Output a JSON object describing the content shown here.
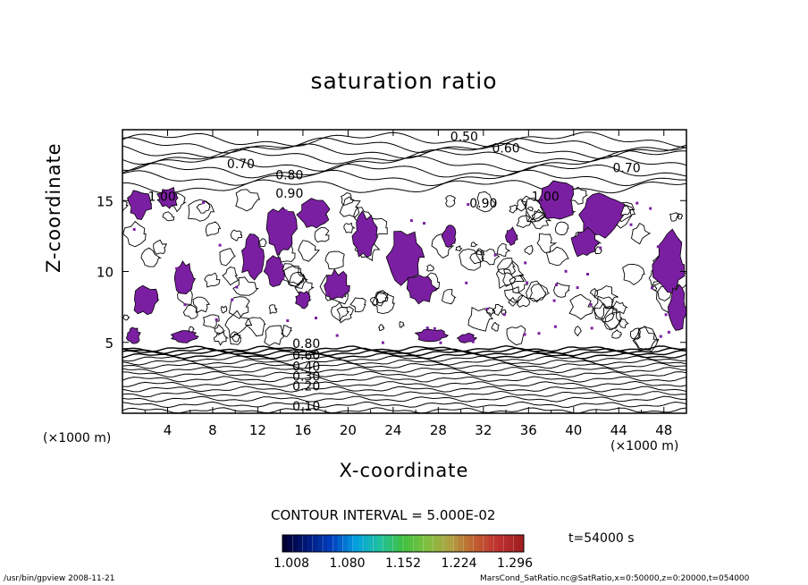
{
  "chart_data": {
    "type": "contour",
    "title": "saturation ratio",
    "xlabel": "X-coordinate",
    "ylabel": "Z-coordinate",
    "x_unit": "(×1000 m)",
    "y_unit": "(×1000 m)",
    "xlim": [
      0,
      50
    ],
    "ylim": [
      0,
      20
    ],
    "x_ticks": [
      "4",
      "8",
      "12",
      "16",
      "20",
      "24",
      "28",
      "32",
      "36",
      "40",
      "44",
      "48"
    ],
    "y_ticks": [
      "5",
      "10",
      "15"
    ],
    "contour_labels": [
      "0.10",
      "0.20",
      "0.30",
      "0.40",
      "0.50",
      "0.60",
      "0.70",
      "0.80",
      "0.90",
      "1.00"
    ],
    "upper_labels": [
      {
        "text": "0.50",
        "x": 30.3,
        "z": 19.2
      },
      {
        "text": "0.60",
        "x": 34.0,
        "z": 18.4
      },
      {
        "text": "0.70",
        "x": 10.5,
        "z": 17.3
      },
      {
        "text": "0.70",
        "x": 44.7,
        "z": 17.0
      },
      {
        "text": "0.80",
        "x": 14.8,
        "z": 16.5
      },
      {
        "text": "0.90",
        "x": 14.8,
        "z": 15.2
      },
      {
        "text": "0.90",
        "x": 32.0,
        "z": 14.5
      },
      {
        "text": "1.00",
        "x": 3.5,
        "z": 15.0
      },
      {
        "text": "1.00",
        "x": 37.5,
        "z": 15.0
      }
    ],
    "lower_labels": [
      {
        "text": "0.80",
        "x": 16.3,
        "z": 4.6
      },
      {
        "text": "0.60",
        "x": 16.3,
        "z": 3.8
      },
      {
        "text": "0.40",
        "x": 16.3,
        "z": 3.0
      },
      {
        "text": "0.30",
        "x": 16.3,
        "z": 2.3
      },
      {
        "text": "0.20",
        "x": 16.3,
        "z": 1.6
      },
      {
        "text": "0.10",
        "x": 16.3,
        "z": 0.2
      }
    ],
    "contour_interval": "CONTOUR INTERVAL = 5.000E-02",
    "colorbar": {
      "ticks": [
        "1.008",
        "1.080",
        "1.152",
        "1.224",
        "1.296"
      ],
      "range": [
        1.008,
        1.296
      ],
      "colors": [
        "#000033",
        "#001a80",
        "#0040c0",
        "#00a0e0",
        "#20c0a0",
        "#40c040",
        "#80c040",
        "#b0a040",
        "#c06030",
        "#c03030",
        "#a02020"
      ]
    },
    "shading_color": "#7b1fa2",
    "time": "t=54000 s"
  },
  "footer": {
    "left": "/usr/bin/gpview   2008-11-21",
    "right": "MarsCond_SatRatio.nc@SatRatio,x=0:50000,z=0:20000,t=054000"
  }
}
